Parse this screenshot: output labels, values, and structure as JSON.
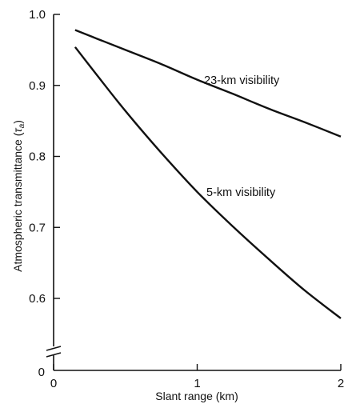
{
  "chart_data": {
    "type": "line",
    "xlabel": "Slant range (km)",
    "ylabel_main": "Atmospheric transmittance (",
    "ylabel_symbol": "τ",
    "ylabel_subscript": "a",
    "ylabel_close": ")",
    "xlim": [
      0,
      2
    ],
    "ylim_broken": [
      0.55,
      1.0
    ],
    "y_break": true,
    "x_ticks": [
      {
        "value": 0,
        "label": "0"
      },
      {
        "value": 1,
        "label": "1"
      },
      {
        "value": 2,
        "label": "2"
      }
    ],
    "y_ticks": [
      {
        "value": 0.6,
        "label": "0.6"
      },
      {
        "value": 0.7,
        "label": "0.7"
      },
      {
        "value": 0.8,
        "label": "0.8"
      },
      {
        "value": 0.9,
        "label": "0.9"
      },
      {
        "value": 1.0,
        "label": "1.0"
      }
    ],
    "y_zero_label": "0",
    "series": [
      {
        "name": "23-km visibility",
        "x": [
          0.15,
          0.3,
          0.5,
          0.75,
          1.0,
          1.25,
          1.5,
          1.75,
          2.0
        ],
        "y": [
          0.978,
          0.966,
          0.95,
          0.93,
          0.908,
          0.888,
          0.867,
          0.848,
          0.828
        ]
      },
      {
        "name": "5-km visibility",
        "x": [
          0.15,
          0.3,
          0.5,
          0.75,
          1.0,
          1.25,
          1.5,
          1.75,
          2.0
        ],
        "y": [
          0.954,
          0.915,
          0.864,
          0.805,
          0.75,
          0.701,
          0.655,
          0.611,
          0.572
        ]
      }
    ],
    "annotations": [
      {
        "text": "23-km visibility",
        "series": 0
      },
      {
        "text": "5-km visibility",
        "series": 1
      }
    ]
  }
}
